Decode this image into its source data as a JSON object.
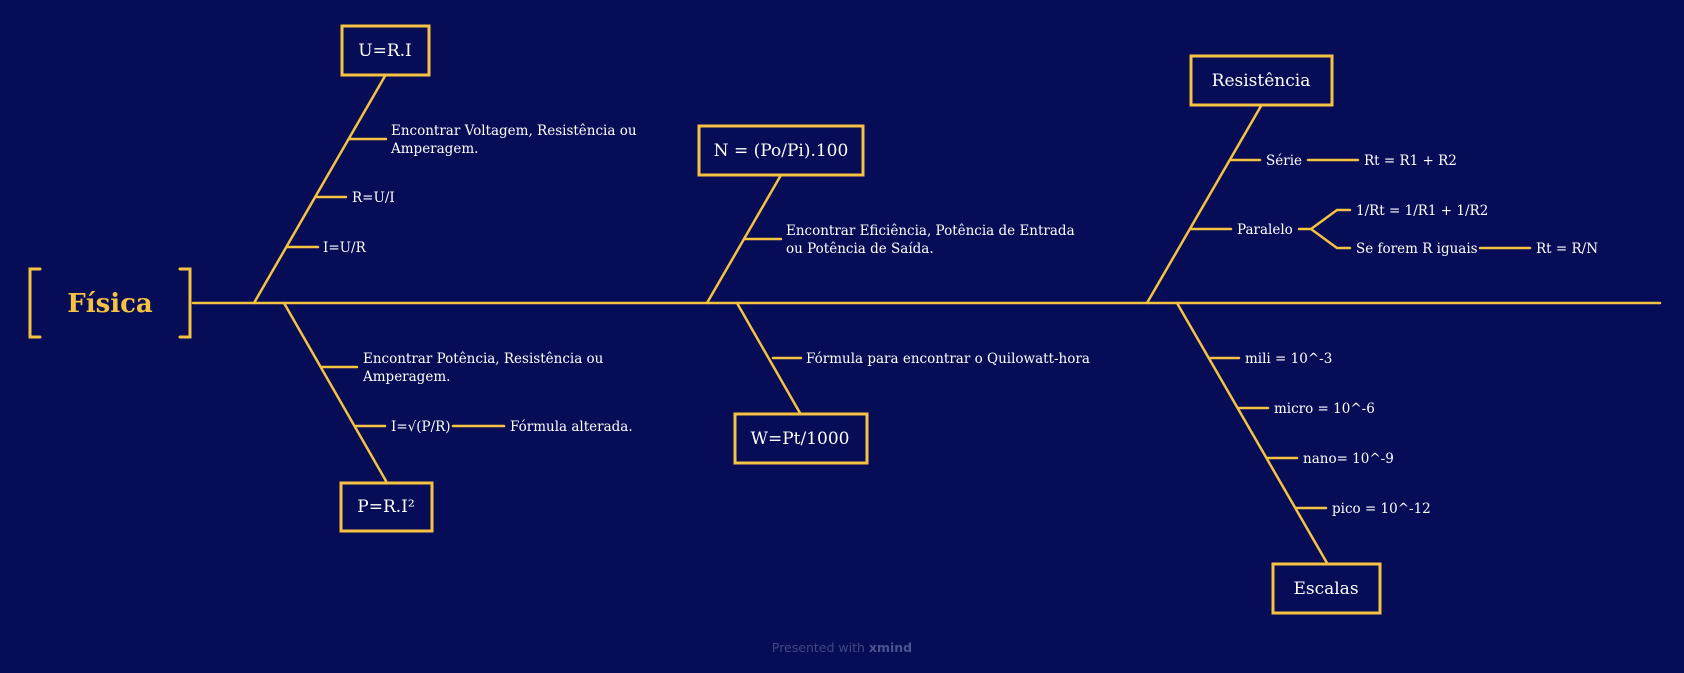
{
  "root": {
    "label": "Física"
  },
  "topics": {
    "ohm": {
      "label": "U=R.I",
      "leaves": [
        "Encontrar Voltagem, Resistência ou",
        "Amperagem.",
        "R=U/I",
        "I=U/R"
      ]
    },
    "power": {
      "label": "P=R.I²",
      "leaves": [
        "Encontrar Potência, Resistência ou",
        "Amperagem.",
        "I=√(P/R)",
        "Fórmula alterada."
      ]
    },
    "efficiency": {
      "label": "N = (Po/Pi).100",
      "leaves": [
        "Encontrar Eficiência, Potência de Entrada",
        "ou  Potência de Saída."
      ]
    },
    "kwh": {
      "label": "W=Pt/1000",
      "leaves": [
        "Fórmula para encontrar o Quilowatt-hora"
      ]
    },
    "resistance": {
      "label": "Resistência",
      "leaves": [
        "Série",
        "Rt = R1 + R2",
        "Paralelo",
        "1/Rt = 1/R1 + 1/R2",
        "Se forem R iguais",
        "Rt = R/N"
      ]
    },
    "scales": {
      "label": "Escalas",
      "leaves": [
        "mili = 10^-3",
        "micro = 10^-6",
        "nano= 10^-9",
        "pico = 10^-12"
      ]
    }
  },
  "footer": {
    "prefix": "Presented with",
    "brand": "xmind"
  },
  "colors": {
    "background": "#060c56",
    "accent": "#f5c242",
    "text": "#ffffff"
  }
}
